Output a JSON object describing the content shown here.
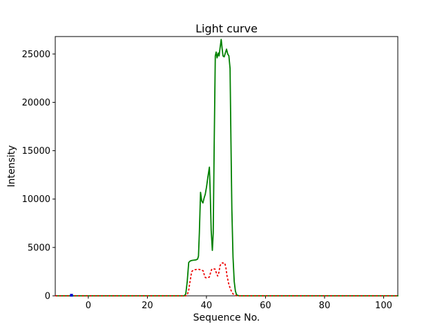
{
  "chart_data": {
    "type": "line",
    "title": "Light curve",
    "xlabel": "Sequence No.",
    "ylabel": "Intensity",
    "xlim": [
      -11.2,
      104.8
    ],
    "ylim": [
      0,
      26800
    ],
    "x_ticks": [
      0,
      20,
      40,
      60,
      80,
      100
    ],
    "y_ticks": [
      0,
      5000,
      10000,
      15000,
      20000,
      25000
    ],
    "grid": false,
    "legend": null,
    "series": [
      {
        "name": "green-curve",
        "color": "#008000",
        "style": "solid",
        "width": 1.8,
        "points": [
          [
            -11,
            0
          ],
          [
            -6,
            0
          ],
          [
            0,
            0
          ],
          [
            10,
            0
          ],
          [
            20,
            0
          ],
          [
            30,
            0
          ],
          [
            32.5,
            0
          ],
          [
            33,
            200
          ],
          [
            33.5,
            1500
          ],
          [
            34,
            3450
          ],
          [
            34.5,
            3600
          ],
          [
            35,
            3650
          ],
          [
            35.5,
            3680
          ],
          [
            36,
            3700
          ],
          [
            36.5,
            3720
          ],
          [
            37,
            3800
          ],
          [
            37.3,
            4100
          ],
          [
            37.6,
            6500
          ],
          [
            38,
            10700
          ],
          [
            38.4,
            9800
          ],
          [
            38.8,
            9600
          ],
          [
            39.2,
            10100
          ],
          [
            39.6,
            10500
          ],
          [
            40,
            11200
          ],
          [
            40.5,
            12300
          ],
          [
            41,
            13300
          ],
          [
            41.3,
            10500
          ],
          [
            41.6,
            6800
          ],
          [
            42,
            4700
          ],
          [
            42.3,
            6500
          ],
          [
            42.6,
            15000
          ],
          [
            43,
            24800
          ],
          [
            43.3,
            25200
          ],
          [
            43.6,
            24600
          ],
          [
            44,
            25100
          ],
          [
            44.3,
            24800
          ],
          [
            44.6,
            25600
          ],
          [
            45,
            26500
          ],
          [
            45.3,
            25600
          ],
          [
            45.6,
            24800
          ],
          [
            46,
            24700
          ],
          [
            46.4,
            25100
          ],
          [
            46.8,
            25500
          ],
          [
            47.2,
            25000
          ],
          [
            47.6,
            24800
          ],
          [
            48,
            23500
          ],
          [
            48.3,
            16000
          ],
          [
            48.6,
            9000
          ],
          [
            49,
            4000
          ],
          [
            49.4,
            1500
          ],
          [
            49.8,
            500
          ],
          [
            50.2,
            100
          ],
          [
            51,
            0
          ],
          [
            60,
            0
          ],
          [
            80,
            0
          ],
          [
            100,
            0
          ],
          [
            105,
            0
          ]
        ]
      },
      {
        "name": "red-dotted-curve",
        "color": "#ee0000",
        "style": "dotted",
        "width": 1.8,
        "points": [
          [
            -11,
            0
          ],
          [
            0,
            0
          ],
          [
            20,
            0
          ],
          [
            30,
            0
          ],
          [
            33,
            0
          ],
          [
            33.5,
            100
          ],
          [
            34,
            600
          ],
          [
            34.5,
            1600
          ],
          [
            35,
            2500
          ],
          [
            35.5,
            2650
          ],
          [
            36,
            2700
          ],
          [
            36.5,
            2720
          ],
          [
            37,
            2750
          ],
          [
            37.5,
            2730
          ],
          [
            38,
            2700
          ],
          [
            38.5,
            2650
          ],
          [
            39,
            2550
          ],
          [
            39.3,
            2100
          ],
          [
            39.6,
            1900
          ],
          [
            40,
            1850
          ],
          [
            40.5,
            1870
          ],
          [
            41,
            1950
          ],
          [
            41.4,
            2400
          ],
          [
            41.8,
            2750
          ],
          [
            42.2,
            2800
          ],
          [
            42.6,
            2780
          ],
          [
            43,
            2750
          ],
          [
            43.4,
            2300
          ],
          [
            43.8,
            2050
          ],
          [
            44.2,
            2400
          ],
          [
            44.6,
            3100
          ],
          [
            45,
            3350
          ],
          [
            45.4,
            3400
          ],
          [
            45.8,
            3380
          ],
          [
            46.2,
            3400
          ],
          [
            46.6,
            2900
          ],
          [
            47,
            2000
          ],
          [
            47.5,
            1300
          ],
          [
            48,
            800
          ],
          [
            48.5,
            450
          ],
          [
            49,
            200
          ],
          [
            49.5,
            80
          ],
          [
            50,
            20
          ],
          [
            51,
            0
          ],
          [
            60,
            0
          ],
          [
            80,
            0
          ],
          [
            100,
            0
          ],
          [
            105,
            0
          ]
        ]
      },
      {
        "name": "blue-marker-segment",
        "color": "#0000cc",
        "style": "solid",
        "width": 4,
        "points": [
          [
            -6.2,
            60
          ],
          [
            -5.2,
            60
          ]
        ]
      }
    ]
  }
}
